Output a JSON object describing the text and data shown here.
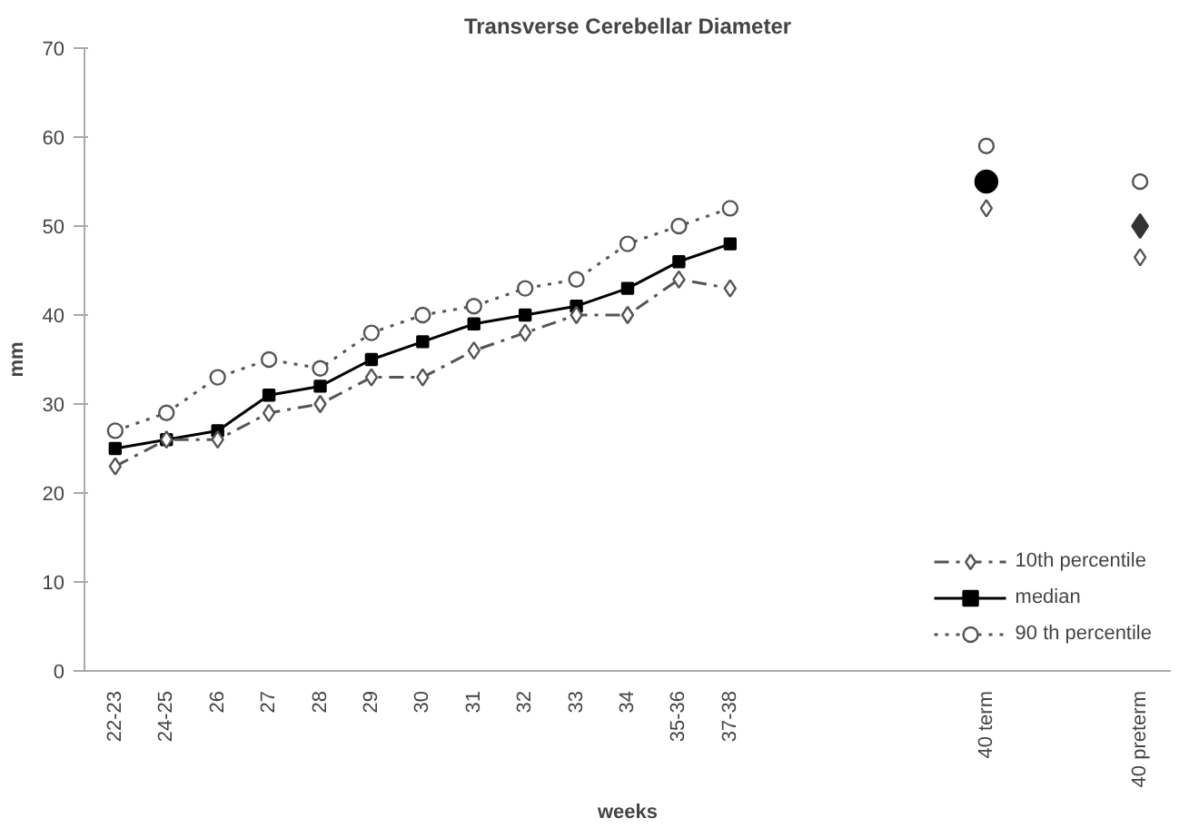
{
  "chart_data": {
    "type": "line",
    "title": "Transverse Cerebellar Diameter",
    "xlabel": "weeks",
    "ylabel": "mm",
    "categories": [
      "22-23",
      "24-25",
      "26",
      "27",
      "28",
      "29",
      "30",
      "31",
      "32",
      "33",
      "34",
      "35-36",
      "37-38",
      null,
      null,
      null,
      null,
      "40 term",
      null,
      null,
      "40 preterm"
    ],
    "series": [
      {
        "name": "10th percentile",
        "color": "#555555",
        "marker": "diamond",
        "line_style": "dashed",
        "values": [
          23,
          26,
          26,
          29,
          30,
          33,
          33,
          36,
          38,
          40,
          40,
          44,
          43,
          null,
          null,
          null,
          null,
          52,
          null,
          null,
          46.5
        ]
      },
      {
        "name": "median",
        "color": "#000000",
        "marker": "square",
        "line_style": "solid",
        "values": [
          25,
          26,
          27,
          31,
          32,
          35,
          37,
          39,
          40,
          41,
          43,
          46,
          48,
          null,
          null,
          null,
          null,
          null,
          null,
          null,
          null
        ]
      },
      {
        "name": "90 th percentile",
        "color": "#555555",
        "marker": "circle",
        "line_style": "dotted",
        "values": [
          27,
          29,
          33,
          35,
          34,
          38,
          40,
          41,
          43,
          44,
          48,
          50,
          52,
          null,
          null,
          null,
          null,
          59,
          null,
          null,
          55
        ]
      },
      {
        "type": "scatter",
        "color": "#000000",
        "marker": "circle",
        "values": [
          null,
          null,
          null,
          null,
          null,
          null,
          null,
          null,
          null,
          null,
          null,
          null,
          null,
          null,
          null,
          null,
          null,
          55,
          null,
          null,
          null
        ]
      },
      {
        "type": "scatter",
        "color": "#333333",
        "marker": "diamond",
        "values": [
          null,
          null,
          null,
          null,
          null,
          null,
          null,
          null,
          null,
          null,
          null,
          null,
          null,
          null,
          null,
          null,
          null,
          null,
          null,
          null,
          50
        ]
      }
    ],
    "ylim": [
      0,
      70
    ],
    "yticks": [
      0,
      10,
      20,
      30,
      40,
      50,
      60,
      70
    ],
    "grid": false,
    "legend": "bottom right"
  }
}
